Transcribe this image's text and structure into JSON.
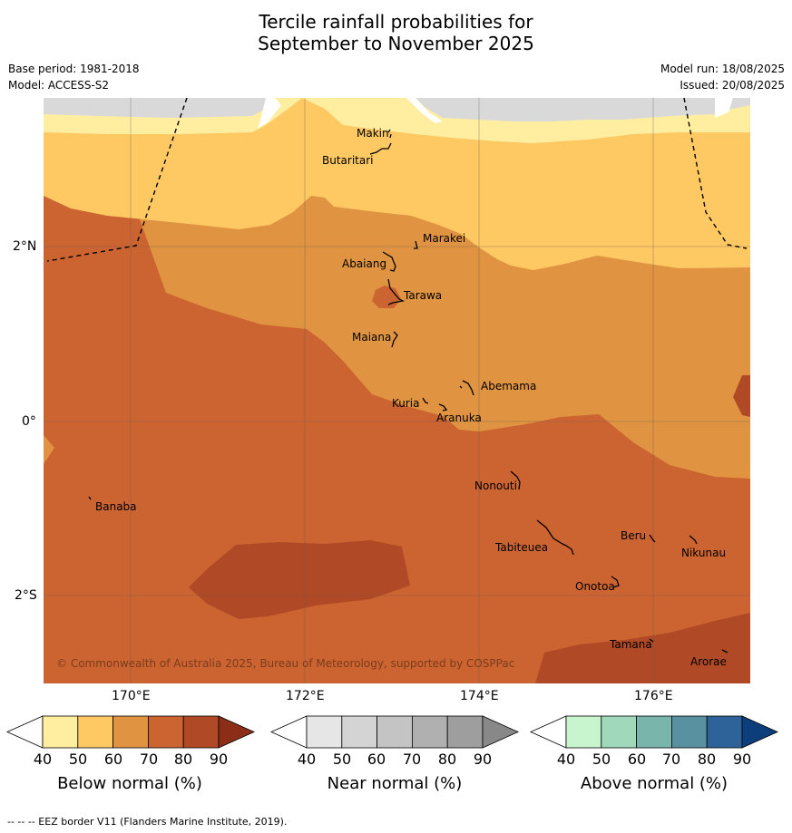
{
  "title_line1": "Tercile rainfall probabilities for",
  "title_line2": "September to November 2025",
  "meta": {
    "base_period": "Base period: 1981-2018",
    "model": "Model: ACCESS-S2",
    "model_run": "Model run: 18/08/2025",
    "issued": "Issued: 20/08/2025"
  },
  "lat_ticks": [
    "2°N",
    "0°",
    "2°S"
  ],
  "lon_ticks": [
    "170°E",
    "172°E",
    "174°E",
    "176°E"
  ],
  "places": {
    "makin": "Makin",
    "butaritari": "Butaritari",
    "marakei": "Marakei",
    "abaiang": "Abaiang",
    "tarawa": "Tarawa",
    "maiana": "Maiana",
    "abemama": "Abemama",
    "kuria": "Kuria",
    "aranuka": "Aranuka",
    "nonouti": "Nonouti",
    "banaba": "Banaba",
    "beru": "Beru",
    "nikunau": "Nikunau",
    "tabiteuea": "Tabiteuea",
    "onotoa": "Onotoa",
    "tamana": "Tamana",
    "arorae": "Arorae"
  },
  "copyright": "© Commonwealth of Australia 2025, Bureau of Meteorology, supported by COSPPac",
  "colorbars": {
    "below": {
      "label": "Below normal (%)",
      "ticks": [
        "40",
        "50",
        "60",
        "70",
        "80",
        "90"
      ],
      "colors": [
        "#ffffff",
        "#ffeda0",
        "#fec863",
        "#e09442",
        "#cc6431",
        "#b04a26",
        "#8c2d18"
      ]
    },
    "near": {
      "label": "Near normal (%)",
      "ticks": [
        "40",
        "50",
        "60",
        "70",
        "80",
        "90"
      ],
      "colors": [
        "#ffffff",
        "#e6e6e6",
        "#d4d4d4",
        "#c4c4c4",
        "#b0b0b0",
        "#9e9e9e",
        "#888888"
      ]
    },
    "above": {
      "label": "Above normal (%)",
      "ticks": [
        "40",
        "50",
        "60",
        "70",
        "80",
        "90"
      ],
      "colors": [
        "#ffffff",
        "#c8f5ce",
        "#a0d8bc",
        "#7ab5ac",
        "#5a91a1",
        "#2e6399",
        "#0b3e7a"
      ]
    }
  },
  "footer": "--  --  -- EEZ border V11 (Flanders Marine Institute, 2019)."
}
